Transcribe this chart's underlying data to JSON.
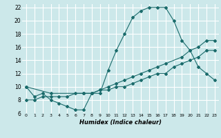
{
  "xlabel": "Humidex (Indice chaleur)",
  "bg_color": "#cce8ea",
  "grid_color": "#ffffff",
  "line_color": "#1a6b6b",
  "xlim": [
    -0.5,
    23.5
  ],
  "ylim": [
    6,
    22.5
  ],
  "xticks": [
    0,
    1,
    2,
    3,
    4,
    5,
    6,
    7,
    8,
    9,
    10,
    11,
    12,
    13,
    14,
    15,
    16,
    17,
    18,
    19,
    20,
    21,
    22,
    23
  ],
  "yticks": [
    6,
    8,
    10,
    12,
    14,
    16,
    18,
    20,
    22
  ],
  "line1_x": [
    0,
    1,
    2,
    3,
    4,
    5,
    6,
    7,
    8,
    9,
    10,
    11,
    12,
    13,
    14,
    15,
    16,
    17,
    18,
    19,
    20,
    21,
    22,
    23
  ],
  "line1_y": [
    10,
    8.5,
    9,
    8,
    7.5,
    7,
    6.5,
    6.5,
    9,
    9,
    12.5,
    15.5,
    18,
    20.5,
    21.5,
    22,
    22,
    22,
    20,
    17,
    15.5,
    13,
    12,
    11
  ],
  "line2_x": [
    0,
    3,
    7,
    8,
    9,
    10,
    11,
    12,
    13,
    14,
    15,
    16,
    17,
    19,
    20,
    21,
    22,
    23
  ],
  "line2_y": [
    10,
    9,
    9,
    9,
    9.5,
    10,
    10.5,
    11,
    11.5,
    12,
    12.5,
    13,
    13.5,
    14.5,
    15.5,
    16,
    17,
    17
  ],
  "line3_x": [
    0,
    1,
    2,
    3,
    4,
    5,
    6,
    7,
    8,
    9,
    10,
    11,
    12,
    13,
    14,
    15,
    16,
    17,
    18,
    19,
    20,
    21,
    22,
    23
  ],
  "line3_y": [
    8,
    8,
    8.5,
    8.5,
    8.5,
    8.5,
    9,
    9,
    9,
    9.5,
    9.5,
    10,
    10,
    10.5,
    11,
    11.5,
    12,
    12,
    13,
    13.5,
    14,
    14.5,
    15.5,
    15.5
  ]
}
